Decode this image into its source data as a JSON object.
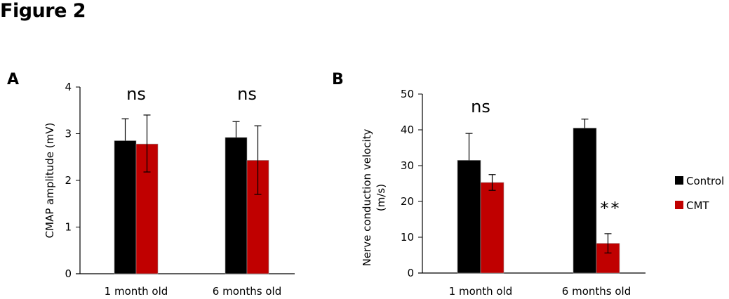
{
  "figure_title": "Figure 2",
  "colors": {
    "control": "#000000",
    "cmt": "#c00000"
  },
  "legend": [
    {
      "label": "Control",
      "color": "#000000"
    },
    {
      "label": "CMT",
      "color": "#c00000"
    }
  ],
  "chart_data": [
    {
      "panel": "A",
      "type": "bar",
      "title": "",
      "xlabel": "",
      "ylabel": "CMAP amplitude (mV)",
      "ylim": [
        0,
        4
      ],
      "yticks": [
        0,
        1,
        2,
        3,
        4
      ],
      "categories": [
        "1 month old",
        "6 months old"
      ],
      "series": [
        {
          "name": "Control",
          "color": "#000000",
          "values": [
            2.85,
            2.92
          ],
          "err_upper": [
            3.32,
            3.26
          ],
          "err_lower": [
            null,
            null
          ]
        },
        {
          "name": "CMT",
          "color": "#c00000",
          "values": [
            2.78,
            2.43
          ],
          "err_upper": [
            3.4,
            3.17
          ],
          "err_lower": [
            2.18,
            1.7
          ]
        }
      ],
      "annotations": [
        {
          "category": "1 month old",
          "text": "ns"
        },
        {
          "category": "6 months old",
          "text": "ns"
        }
      ],
      "grid": false
    },
    {
      "panel": "B",
      "type": "bar",
      "title": "",
      "xlabel": "",
      "ylabel": [
        "Nerve conduction velocity",
        "(m/s)"
      ],
      "ylim": [
        0,
        50
      ],
      "yticks": [
        0,
        10,
        20,
        30,
        40,
        50
      ],
      "categories": [
        "1 month old",
        "6 months old"
      ],
      "series": [
        {
          "name": "Control",
          "color": "#000000",
          "values": [
            31.5,
            40.5
          ],
          "err_upper": [
            39.0,
            43.0
          ],
          "err_lower": [
            null,
            null
          ]
        },
        {
          "name": "CMT",
          "color": "#c00000",
          "values": [
            25.3,
            8.3
          ],
          "err_upper": [
            27.5,
            11.0
          ],
          "err_lower": [
            23.1,
            5.6
          ]
        }
      ],
      "annotations": [
        {
          "category": "1 month old",
          "text": "ns"
        },
        {
          "category": "6 months old",
          "text": "**",
          "series": "CMT"
        }
      ],
      "grid": false,
      "legend_position": "right"
    }
  ]
}
